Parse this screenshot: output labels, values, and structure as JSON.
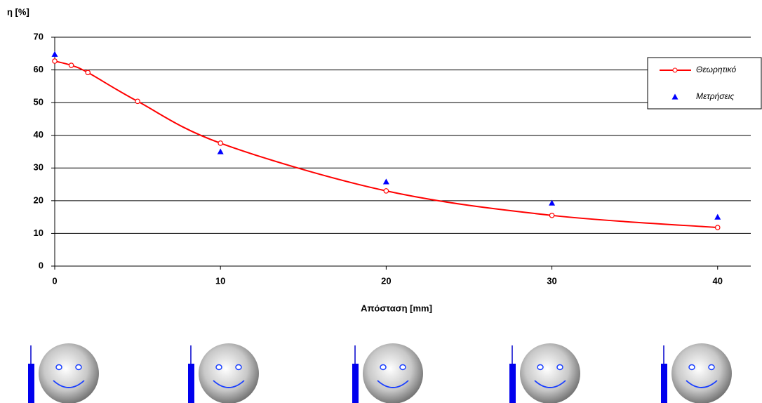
{
  "chart_data": {
    "type": "line",
    "y_label": "η [%]",
    "x_label": "Απόσταση [mm]",
    "xlim": [
      0,
      42
    ],
    "xticks": [
      0,
      10,
      20,
      30,
      40
    ],
    "ylim": [
      0,
      70
    ],
    "yticks": [
      0,
      10,
      20,
      30,
      40,
      50,
      60,
      70
    ],
    "grid": true,
    "legend": "right",
    "series": [
      {
        "name": "Θεωρητικό",
        "color": "#ff0000",
        "marker": "circle",
        "smooth": true,
        "x": [
          0,
          1,
          2,
          5,
          10,
          20,
          30,
          40
        ],
        "values": [
          62.7,
          61.4,
          59.2,
          50.4,
          37.6,
          23,
          15.5,
          11.8
        ]
      },
      {
        "name": "Μετρήσεις",
        "color": "#0000ff",
        "marker": "triangle",
        "line": false,
        "x": [
          0,
          10,
          20,
          30,
          40
        ],
        "values": [
          64.8,
          35,
          25.8,
          19.3,
          15
        ]
      }
    ]
  }
}
